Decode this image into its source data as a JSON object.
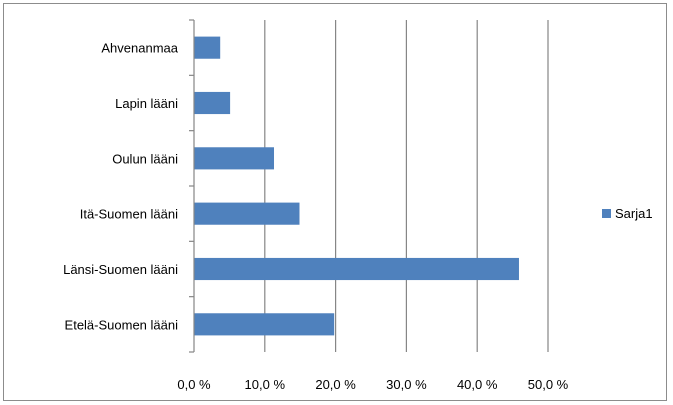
{
  "chart_data": {
    "type": "bar",
    "orientation": "horizontal",
    "categories": [
      "Ahvenanmaa",
      "Lapin lääni",
      "Oulun lääni",
      "Itä-Suomen lääni",
      "Länsi-Suomen lääni",
      "Etelä-Suomen lääni"
    ],
    "series": [
      {
        "name": "Sarja1",
        "values": [
          3.7,
          5.1,
          11.3,
          14.9,
          45.9,
          19.8
        ],
        "color": "#4f81bd"
      }
    ],
    "x_ticks": [
      "0,0 %",
      "10,0 %",
      "20,0 %",
      "30,0 %",
      "40,0 %",
      "50,0 %"
    ],
    "xlim": [
      0,
      50
    ],
    "grid": "vertical major gridlines",
    "legend_position": "right",
    "title": "",
    "xlabel": "",
    "ylabel": ""
  }
}
